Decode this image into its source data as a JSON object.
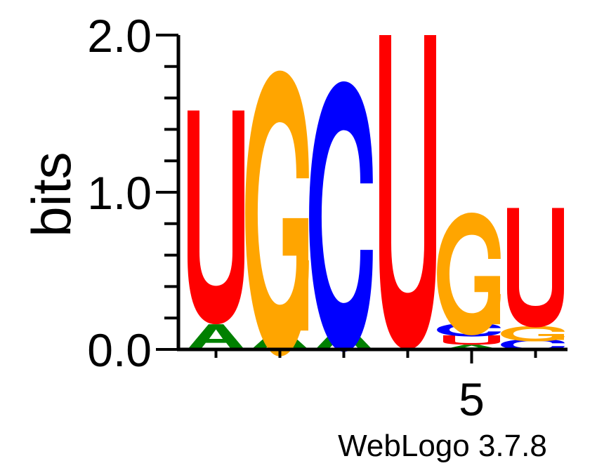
{
  "chart_data": {
    "type": "sequence-logo",
    "ylabel": "bits",
    "ylim": [
      0,
      2.0
    ],
    "yticks": [
      {
        "value": 0.0,
        "label": "0.0"
      },
      {
        "value": 1.0,
        "label": "1.0"
      },
      {
        "value": 2.0,
        "label": "2.0"
      }
    ],
    "xtick_label": {
      "position": 5,
      "label": "5"
    },
    "positions": [
      1,
      2,
      3,
      4,
      5,
      6
    ],
    "colors": {
      "U": "#ff0000",
      "G": "#ffa500",
      "C": "#0000ff",
      "A": "#008000"
    },
    "stacks": [
      {
        "position": 1,
        "letters": [
          {
            "letter": "A",
            "bits": 0.16
          },
          {
            "letter": "U",
            "bits": 1.36
          }
        ]
      },
      {
        "position": 2,
        "letters": [
          {
            "letter": "A",
            "bits": 0.12
          },
          {
            "letter": "G",
            "bits": 1.49
          }
        ]
      },
      {
        "position": 3,
        "letters": [
          {
            "letter": "A",
            "bits": 0.14
          },
          {
            "letter": "C",
            "bits": 1.41
          }
        ]
      },
      {
        "position": 4,
        "letters": [
          {
            "letter": "U",
            "bits": 2.0
          }
        ]
      },
      {
        "position": 5,
        "letters": [
          {
            "letter": "A",
            "bits": 0.03
          },
          {
            "letter": "U",
            "bits": 0.06
          },
          {
            "letter": "C",
            "bits": 0.07
          },
          {
            "letter": "G",
            "bits": 0.64
          }
        ]
      },
      {
        "position": 6,
        "letters": [
          {
            "letter": "C",
            "bits": 0.06
          },
          {
            "letter": "G",
            "bits": 0.08
          },
          {
            "letter": "U",
            "bits": 0.76
          }
        ]
      }
    ]
  },
  "footer": {
    "credit": "WebLogo 3.7.8"
  }
}
